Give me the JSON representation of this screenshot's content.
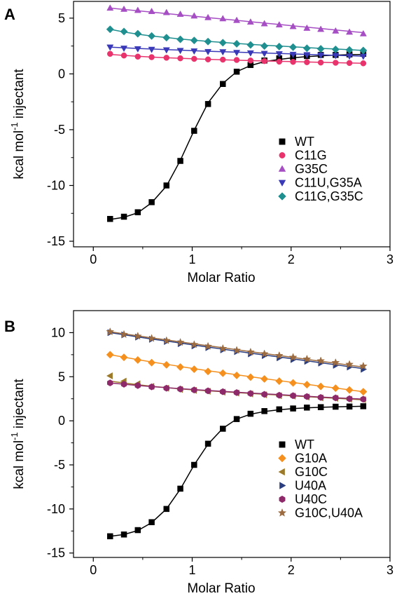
{
  "chart_data": [
    {
      "type": "scatter",
      "panel_label": "A",
      "xlabel": "Molar Ratio",
      "ylabel": "kcal mol",
      "ylabel_sup": "-1",
      "ylabel_tail": " injectant",
      "xlim": [
        -0.2,
        3.0
      ],
      "ylim": [
        -15.5,
        6.5
      ],
      "xticks": [
        0,
        1,
        2,
        3
      ],
      "yticks": [
        5,
        0,
        -5,
        -10,
        -15
      ],
      "legend_placement": "lower-right",
      "x": [
        0.17,
        0.31,
        0.45,
        0.59,
        0.74,
        0.88,
        1.02,
        1.16,
        1.31,
        1.45,
        1.59,
        1.73,
        1.88,
        2.02,
        2.16,
        2.3,
        2.45,
        2.59,
        2.73
      ],
      "series": [
        {
          "name": "WT",
          "marker": "square",
          "color": "#000000",
          "values": [
            -13.0,
            -12.8,
            -12.4,
            -11.5,
            -10.0,
            -7.8,
            -5.1,
            -2.7,
            -0.9,
            0.2,
            0.8,
            1.2,
            1.4,
            1.5,
            1.6,
            1.7,
            1.7,
            1.75,
            1.8
          ],
          "fit": [
            -13.05,
            -12.85,
            -12.45,
            -11.55,
            -10.05,
            -7.75,
            -5.05,
            -2.6,
            -0.85,
            0.2,
            0.75,
            1.1,
            1.3,
            1.45,
            1.55,
            1.62,
            1.68,
            1.72,
            1.75
          ]
        },
        {
          "name": "C11G",
          "marker": "circle",
          "color": "#e8336d",
          "values": [
            1.8,
            1.65,
            1.55,
            1.5,
            1.45,
            1.4,
            1.35,
            1.3,
            1.28,
            1.25,
            1.2,
            1.15,
            1.1,
            1.08,
            1.05,
            1.02,
            1.0,
            0.98,
            0.95
          ],
          "fit": [
            1.75,
            1.66,
            1.58,
            1.51,
            1.45,
            1.4,
            1.35,
            1.31,
            1.27,
            1.23,
            1.2,
            1.16,
            1.13,
            1.1,
            1.07,
            1.04,
            1.01,
            0.98,
            0.95
          ]
        },
        {
          "name": "G35C",
          "marker": "triangle-up",
          "color": "#a64ec4",
          "values": [
            5.9,
            5.8,
            5.7,
            5.6,
            5.5,
            5.35,
            5.2,
            5.05,
            4.95,
            4.8,
            4.65,
            4.5,
            4.4,
            4.25,
            4.1,
            4.0,
            3.85,
            3.75,
            3.6
          ],
          "fit": [
            5.9,
            5.78,
            5.66,
            5.54,
            5.41,
            5.29,
            5.17,
            5.05,
            4.92,
            4.8,
            4.68,
            4.56,
            4.43,
            4.31,
            4.19,
            4.07,
            3.94,
            3.82,
            3.7
          ]
        },
        {
          "name": "C11U,G35A",
          "marker": "triangle-down",
          "color": "#3a3ab8",
          "values": [
            2.4,
            2.3,
            2.25,
            2.2,
            2.15,
            2.1,
            2.05,
            2.0,
            1.98,
            1.92,
            1.88,
            1.83,
            1.8,
            1.75,
            1.72,
            1.68,
            1.65,
            1.6,
            1.58
          ],
          "fit": [
            2.4,
            2.34,
            2.28,
            2.23,
            2.18,
            2.13,
            2.08,
            2.03,
            1.99,
            1.95,
            1.91,
            1.87,
            1.83,
            1.79,
            1.75,
            1.71,
            1.67,
            1.63,
            1.59
          ]
        },
        {
          "name": "C11G,G35C",
          "marker": "diamond",
          "color": "#1f8f8f",
          "values": [
            4.0,
            3.8,
            3.6,
            3.4,
            3.25,
            3.1,
            3.0,
            2.9,
            2.8,
            2.7,
            2.6,
            2.5,
            2.45,
            2.4,
            2.3,
            2.25,
            2.2,
            2.15,
            2.1
          ],
          "fit": [
            4.0,
            3.76,
            3.56,
            3.4,
            3.26,
            3.13,
            3.02,
            2.92,
            2.82,
            2.73,
            2.65,
            2.57,
            2.5,
            2.43,
            2.36,
            2.29,
            2.23,
            2.17,
            2.11
          ]
        }
      ]
    },
    {
      "type": "scatter",
      "panel_label": "B",
      "xlabel": "Molar Ratio",
      "ylabel": "kcal mol",
      "ylabel_sup": "-1",
      "ylabel_tail": " injectant",
      "xlim": [
        -0.2,
        3.0
      ],
      "ylim": [
        -15.5,
        12.5
      ],
      "xticks": [
        0,
        1,
        2,
        3
      ],
      "yticks": [
        10,
        5,
        0,
        -5,
        -10,
        -15
      ],
      "legend_placement": "lower-right",
      "x": [
        0.17,
        0.31,
        0.45,
        0.59,
        0.74,
        0.88,
        1.02,
        1.16,
        1.31,
        1.45,
        1.59,
        1.73,
        1.88,
        2.02,
        2.16,
        2.3,
        2.45,
        2.59,
        2.73
      ],
      "series": [
        {
          "name": "WT",
          "marker": "square",
          "color": "#000000",
          "values": [
            -13.1,
            -12.9,
            -12.4,
            -11.5,
            -10.0,
            -7.7,
            -5.0,
            -2.6,
            -0.9,
            0.2,
            0.8,
            1.1,
            1.3,
            1.4,
            1.5,
            1.55,
            1.6,
            1.62,
            1.65
          ],
          "fit": [
            -13.1,
            -12.9,
            -12.45,
            -11.55,
            -10.0,
            -7.75,
            -5.0,
            -2.65,
            -0.85,
            0.2,
            0.75,
            1.05,
            1.25,
            1.38,
            1.47,
            1.53,
            1.58,
            1.62,
            1.65
          ]
        },
        {
          "name": "G10A",
          "marker": "diamond",
          "color": "#f5901e",
          "values": [
            7.5,
            7.2,
            6.9,
            6.6,
            6.35,
            6.1,
            5.85,
            5.6,
            5.4,
            5.15,
            4.95,
            4.75,
            4.5,
            4.3,
            4.1,
            3.9,
            3.7,
            3.5,
            3.3
          ],
          "fit": [
            7.5,
            7.22,
            6.94,
            6.67,
            6.41,
            6.16,
            5.92,
            5.68,
            5.45,
            5.22,
            5.0,
            4.78,
            4.56,
            4.35,
            4.14,
            3.93,
            3.72,
            3.51,
            3.3
          ]
        },
        {
          "name": "G10C",
          "marker": "triangle-left",
          "color": "#9c7a2a",
          "values": [
            5.1,
            4.5,
            4.2,
            3.9,
            3.7,
            3.55,
            3.45,
            3.35,
            3.25,
            3.15,
            3.05,
            2.95,
            2.85,
            2.8,
            2.7,
            2.6,
            2.55,
            2.45,
            2.4
          ],
          "fit": [
            4.5,
            4.3,
            4.1,
            3.92,
            3.76,
            3.62,
            3.5,
            3.4,
            3.3,
            3.2,
            3.1,
            3.01,
            2.92,
            2.83,
            2.74,
            2.65,
            2.56,
            2.47,
            2.38
          ]
        },
        {
          "name": "U40A",
          "marker": "triangle-right",
          "color": "#2b3e80",
          "values": [
            10.0,
            9.75,
            9.5,
            9.25,
            9.0,
            8.75,
            8.5,
            8.3,
            8.05,
            7.85,
            7.6,
            7.4,
            7.15,
            6.95,
            6.75,
            6.55,
            6.3,
            6.1,
            5.85
          ],
          "fit": [
            10.0,
            9.76,
            9.52,
            9.28,
            9.05,
            8.82,
            8.59,
            8.36,
            8.13,
            7.9,
            7.68,
            7.46,
            7.24,
            7.02,
            6.8,
            6.58,
            6.36,
            6.14,
            5.92
          ]
        },
        {
          "name": "U40C",
          "marker": "hexagon",
          "color": "#8e2a6a",
          "values": [
            4.3,
            4.15,
            4.0,
            3.85,
            3.7,
            3.6,
            3.5,
            3.4,
            3.3,
            3.2,
            3.1,
            3.0,
            2.9,
            2.85,
            2.75,
            2.65,
            2.6,
            2.5,
            2.45
          ],
          "fit": [
            4.3,
            4.15,
            4.01,
            3.88,
            3.76,
            3.65,
            3.54,
            3.44,
            3.34,
            3.24,
            3.15,
            3.06,
            2.97,
            2.88,
            2.79,
            2.7,
            2.62,
            2.54,
            2.46
          ]
        },
        {
          "name": "G10C,U40A",
          "marker": "star",
          "color": "#9c6b3f",
          "values": [
            10.1,
            9.8,
            9.6,
            9.35,
            9.1,
            8.9,
            8.65,
            8.45,
            8.2,
            8.0,
            7.8,
            7.6,
            7.4,
            7.2,
            7.0,
            6.8,
            6.6,
            6.4,
            6.2
          ],
          "fit": [
            10.1,
            9.87,
            9.64,
            9.41,
            9.18,
            8.95,
            8.73,
            8.51,
            8.29,
            8.07,
            7.85,
            7.63,
            7.41,
            7.19,
            6.97,
            6.75,
            6.53,
            6.31,
            6.1
          ]
        }
      ]
    }
  ]
}
